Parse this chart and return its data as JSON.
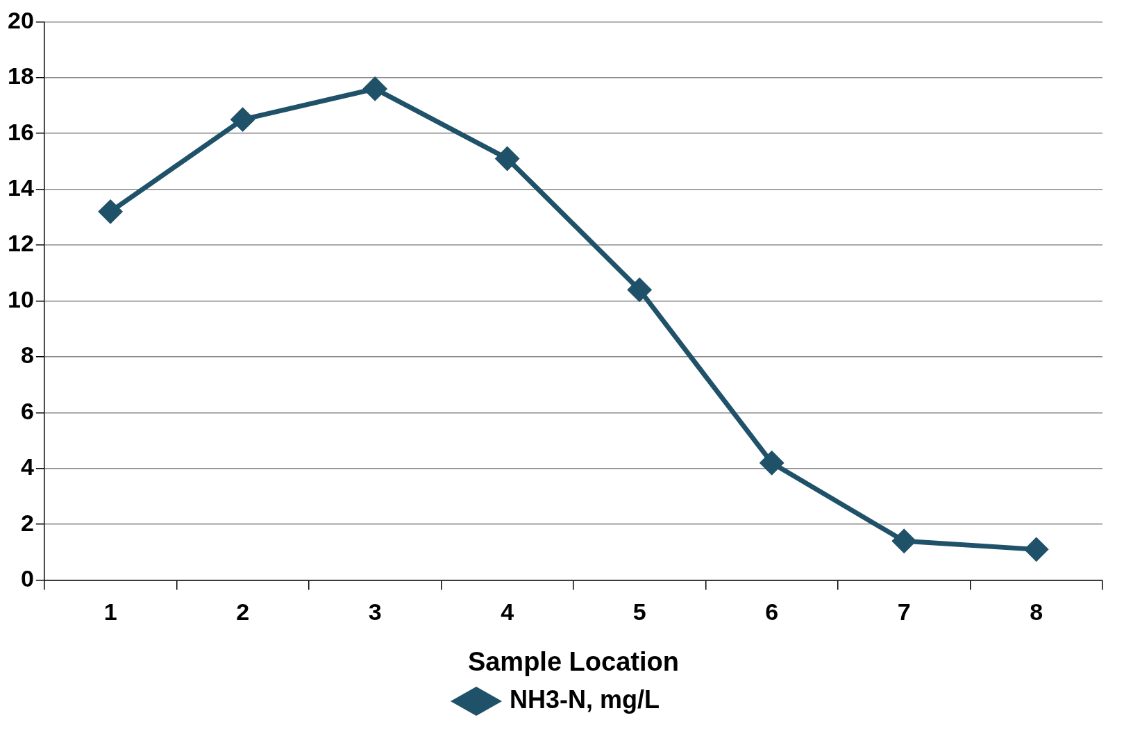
{
  "chart_data": {
    "type": "line",
    "xlabel": "Sample Location",
    "categories": [
      "1",
      "2",
      "3",
      "4",
      "5",
      "6",
      "7",
      "8"
    ],
    "series": [
      {
        "name": "NH3-N, mg/L",
        "color": "#1f5269",
        "values": [
          13.2,
          16.5,
          17.6,
          15.1,
          10.4,
          4.2,
          1.4,
          1.1
        ]
      }
    ],
    "ylim": [
      0,
      20
    ],
    "yticks": [
      0,
      2,
      4,
      6,
      8,
      10,
      12,
      14,
      16,
      18,
      20
    ],
    "grid": "y",
    "legend": "bottom",
    "marker": "diamond",
    "line_style": "solid"
  }
}
